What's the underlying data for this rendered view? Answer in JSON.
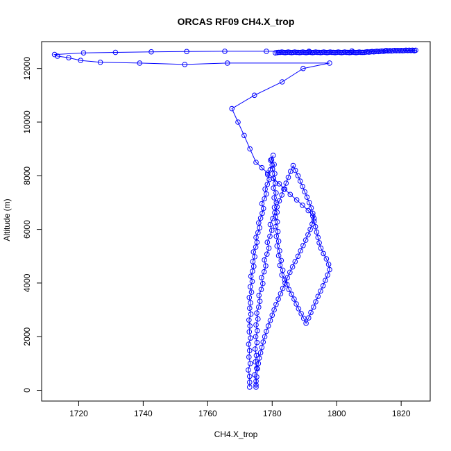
{
  "chart_data": {
    "type": "scatter",
    "title": "ORCAS RF09 CH4.X_trop",
    "xlabel": "CH4.X_trop",
    "ylabel": "Altitude (m)",
    "xlim": [
      1708.5,
      1829
    ],
    "ylim": [
      -400,
      13000
    ],
    "xticks": [
      1720,
      1740,
      1760,
      1780,
      1800,
      1820
    ],
    "yticks": [
      0,
      2000,
      4000,
      6000,
      8000,
      10000,
      12000
    ],
    "marker": "open-circle",
    "connected": true,
    "grid": false,
    "legend": "none",
    "color": "#0000ff",
    "series": [
      {
        "x": [
          1773,
          1773,
          1773,
          1772.6,
          1773.2,
          1772.8,
          1773,
          1772.7,
          1773.3,
          1772.9,
          1773.1,
          1772.8,
          1773.4,
          1773,
          1773.3,
          1772.9,
          1773.6,
          1773.2,
          1773.8,
          1773.4,
          1773.9,
          1774.3,
          1774,
          1774.6,
          1774.2,
          1774.9,
          1775.3,
          1775,
          1775.6,
          1776.1,
          1775.8,
          1776.4,
          1776.9,
          1777.3,
          1776.8,
          1777.6,
          1778.2,
          1777.8,
          1778.5,
          1779.1,
          1778.6,
          1779.4,
          1780,
          1779.5,
          1780.3,
          1779.8,
          1780.6,
          1780.1,
          1780.8,
          1780.3,
          1781,
          1780.4,
          1781.2,
          1780.6,
          1781.3,
          1780.7,
          1781.5,
          1781,
          1781.6,
          1781.1,
          1781.8,
          1781.3,
          1782,
          1781.5,
          1782.3,
          1782,
          1782.8,
          1782.4,
          1783.3,
          1783,
          1783.9,
          1784.6,
          1785.2,
          1786,
          1786.8,
          1787.5,
          1788.2,
          1789,
          1789.8,
          1790.5,
          1791.3,
          1792,
          1792.8,
          1793.5,
          1794.2,
          1795,
          1795.8,
          1796.5,
          1797.2,
          1797.8,
          1797.5,
          1796.8,
          1795.9,
          1795.1,
          1794.6,
          1794.2,
          1793.8,
          1793.4,
          1793,
          1792.6,
          1791.2,
          1789.4,
          1787.6,
          1785.6,
          1783.9,
          1782.2,
          1780.4,
          1778.6,
          1776.8,
          1775,
          1773.1,
          1771.3,
          1769.4,
          1767.5,
          1774.5,
          1783.1,
          1789.6,
          1797.8,
          1766.1,
          1752.9,
          1738.9,
          1726.7,
          1720.6,
          1716.9,
          1713.4,
          1712.5,
          1721.5,
          1731.4,
          1742.5,
          1753.5,
          1765.3,
          1778.2,
          1791.4,
          1804.7,
          1815.2,
          1824.1
        ],
        "y": [
          120,
          300,
          520,
          760,
          1000,
          1240,
          1480,
          1720,
          1950,
          2180,
          2400,
          2620,
          2840,
          3060,
          3260,
          3460,
          3660,
          3860,
          4060,
          4250,
          4440,
          4620,
          4800,
          4980,
          5160,
          5340,
          5520,
          5700,
          5880,
          6060,
          6240,
          6420,
          6600,
          6780,
          6960,
          7140,
          7320,
          7500,
          7680,
          7860,
          8040,
          8220,
          8400,
          8580,
          8760,
          8600,
          8420,
          8250,
          8080,
          7900,
          7720,
          7540,
          7360,
          7180,
          7000,
          6820,
          6640,
          6460,
          6280,
          6100,
          5920,
          5740,
          5560,
          5380,
          5200,
          5020,
          4840,
          4660,
          4480,
          4300,
          4120,
          3940,
          3760,
          3580,
          3400,
          3220,
          3040,
          2860,
          2680,
          2500,
          2700,
          2900,
          3100,
          3300,
          3500,
          3700,
          3900,
          4100,
          4300,
          4500,
          4700,
          4900,
          5100,
          5300,
          5500,
          5700,
          5900,
          6100,
          6300,
          6500,
          6700,
          6900,
          7100,
          7300,
          7500,
          7700,
          7900,
          8100,
          8300,
          8500,
          9000,
          9500,
          10000,
          10500,
          11000,
          11500,
          12000,
          12200,
          12200,
          12150,
          12200,
          12230,
          12300,
          12400,
          12460,
          12520,
          12580,
          12600,
          12620,
          12630,
          12640,
          12640,
          12640,
          12650,
          12660,
          12660
        ]
      },
      {
        "x": [
          1775,
          1775,
          1774.6,
          1775.2,
          1774.8,
          1775.1,
          1774.7,
          1775.3,
          1774.9,
          1775.4,
          1775,
          1775.6,
          1775.2,
          1775.8,
          1776.2,
          1775.9,
          1776.6,
          1777.1,
          1776.7,
          1777.5,
          1778,
          1777.6,
          1778.4,
          1779,
          1778.5,
          1779.3,
          1779.9,
          1779.4,
          1780.2,
          1780.8,
          1781.5,
          1782.2,
          1783,
          1783.6,
          1784.3,
          1785,
          1785.7,
          1786.5,
          1787.2,
          1788,
          1788.7,
          1789.4,
          1790.1,
          1790.8,
          1791.5,
          1792.1,
          1792.6,
          1793,
          1792.4,
          1791.8,
          1791.1,
          1790.4,
          1789.6,
          1788.8,
          1788,
          1787.1,
          1786.3,
          1785.5,
          1784.7,
          1784,
          1783.3,
          1782.6,
          1781.9,
          1781.2,
          1780.6,
          1780,
          1779.4,
          1778.8,
          1778.2,
          1777.7,
          1777.2,
          1776.8,
          1776.4,
          1776,
          1775.7,
          1775.4,
          1775.2,
          1775
        ],
        "y": [
          120,
          340,
          580,
          820,
          1060,
          1300,
          1540,
          1780,
          2000,
          2220,
          2440,
          2660,
          2880,
          3100,
          3320,
          3540,
          3760,
          3980,
          4200,
          4420,
          4640,
          4860,
          5080,
          5300,
          5520,
          5740,
          5960,
          6180,
          6400,
          6620,
          6840,
          7060,
          7280,
          7500,
          7720,
          7940,
          8160,
          8380,
          8200,
          8000,
          7800,
          7600,
          7400,
          7200,
          7000,
          6800,
          6600,
          6400,
          6200,
          6000,
          5800,
          5600,
          5400,
          5200,
          5000,
          4800,
          4600,
          4400,
          4200,
          4000,
          3800,
          3600,
          3400,
          3200,
          3000,
          2800,
          2600,
          2400,
          2200,
          2000,
          1800,
          1600,
          1400,
          1200,
          1000,
          800,
          500,
          200
        ]
      },
      {
        "x": [
          1781,
          1781.5,
          1782,
          1782.5,
          1783,
          1783.5,
          1784,
          1784.5,
          1785,
          1785.5,
          1786,
          1786.5,
          1787,
          1787.5,
          1788,
          1788.5,
          1789,
          1789.5,
          1790,
          1790.5,
          1791,
          1791.5,
          1792,
          1792.5,
          1793,
          1793.5,
          1794,
          1794.5,
          1795,
          1795.5,
          1796,
          1796.5,
          1797,
          1797.5,
          1798,
          1798.5,
          1799,
          1799.5,
          1800,
          1800.5,
          1801,
          1801.5,
          1802,
          1802.5,
          1803,
          1803.5,
          1804,
          1804.5,
          1805,
          1805.5,
          1806,
          1806.5,
          1807,
          1807.5,
          1808,
          1808.5,
          1809,
          1809.5,
          1810,
          1810.5,
          1811,
          1811.5,
          1812,
          1812.5,
          1813,
          1813.5,
          1814,
          1814.5,
          1815,
          1815.5,
          1816,
          1816.5,
          1817,
          1817.5,
          1818,
          1818.5,
          1819,
          1819.5,
          1820,
          1820.5,
          1821,
          1821.5,
          1822,
          1822.5,
          1823,
          1823.5,
          1824,
          1824.5
        ],
        "y": [
          12580,
          12590,
          12600,
          12600,
          12610,
          12600,
          12590,
          12600,
          12610,
          12600,
          12590,
          12600,
          12610,
          12600,
          12600,
          12590,
          12600,
          12610,
          12600,
          12590,
          12600,
          12610,
          12600,
          12590,
          12600,
          12610,
          12600,
          12600,
          12590,
          12600,
          12610,
          12600,
          12590,
          12600,
          12610,
          12600,
          12600,
          12590,
          12600,
          12610,
          12600,
          12590,
          12600,
          12610,
          12600,
          12600,
          12590,
          12600,
          12610,
          12600,
          12590,
          12600,
          12610,
          12600,
          12600,
          12600,
          12610,
          12620,
          12610,
          12620,
          12630,
          12620,
          12630,
          12640,
          12630,
          12640,
          12650,
          12640,
          12650,
          12660,
          12650,
          12660,
          12650,
          12660,
          12670,
          12660,
          12670,
          12660,
          12670,
          12660,
          12670,
          12680,
          12670,
          12680,
          12670,
          12680,
          12670,
          12680
        ]
      }
    ]
  }
}
